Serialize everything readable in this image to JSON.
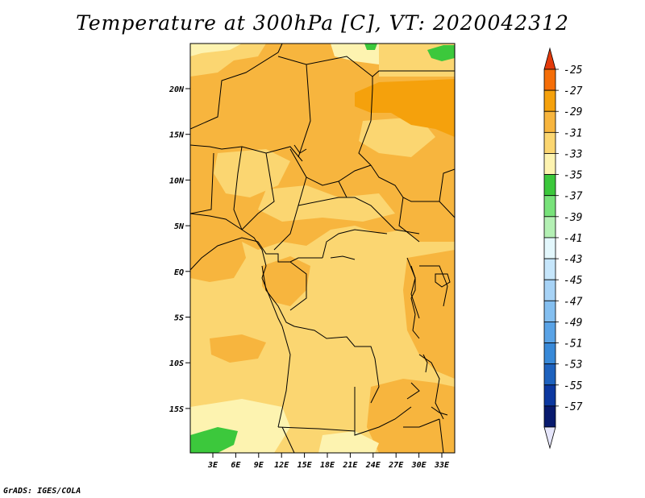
{
  "title": "Temperature at 300hPa [C], VT: 2020042312",
  "credit": "GrADS: IGES/COLA",
  "map": {
    "lat_ticks": [
      "20N",
      "15N",
      "10N",
      "5N",
      "EQ",
      "5S",
      "10S",
      "15S"
    ],
    "lon_ticks": [
      "3E",
      "6E",
      "9E",
      "12E",
      "15E",
      "18E",
      "21E",
      "24E",
      "27E",
      "30E",
      "33E"
    ]
  },
  "colorbar": {
    "labels": [
      "-25",
      "-27",
      "-29",
      "-31",
      "-33",
      "-35",
      "-37",
      "-39",
      "-41",
      "-43",
      "-45",
      "-47",
      "-49",
      "-51",
      "-53",
      "-55",
      "-57"
    ],
    "colors": [
      "#e33a0b",
      "#f56e08",
      "#f5a10c",
      "#f7b53e",
      "#fbd671",
      "#fdf3b0",
      "#3cc83c",
      "#78e27a",
      "#b4f0b4",
      "#e3f7fc",
      "#c6e6fb",
      "#a7d3f6",
      "#84bff0",
      "#5aa3e6",
      "#3889d8",
      "#1e62be",
      "#0c38a0",
      "#081a6e",
      "#e6e6fb"
    ]
  }
}
